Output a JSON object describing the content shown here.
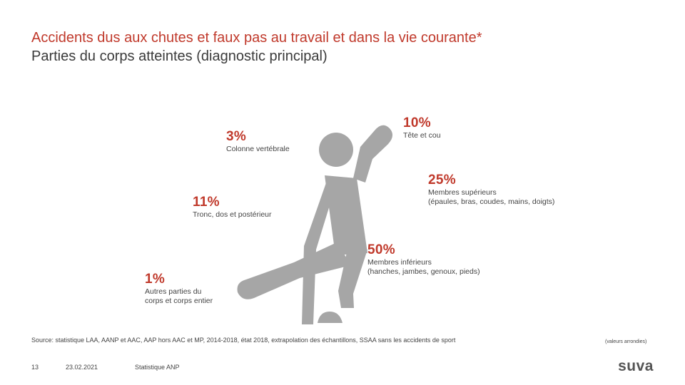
{
  "header": {
    "title": "Accidents dus aux chutes et faux pas au travail et dans la vie courante*",
    "subtitle": "Parties du corps atteintes (diagnostic principal)"
  },
  "parts": [
    {
      "id": "head",
      "percent": "10%",
      "label": "Tête et cou"
    },
    {
      "id": "spine",
      "percent": "3%",
      "label": "Colonne vertébrale"
    },
    {
      "id": "upper",
      "percent": "25%",
      "label": "Membres supérieurs\n(épaules, bras, coudes, mains, doigts)"
    },
    {
      "id": "trunk",
      "percent": "11%",
      "label": "Tronc, dos et postérieur"
    },
    {
      "id": "lower",
      "percent": "50%",
      "label": "Membres inférieurs\n(hanches, jambes, genoux, pieds)"
    },
    {
      "id": "other",
      "percent": "1%",
      "label": "Autres parties du\ncorps et corps entier"
    }
  ],
  "footer": {
    "source": "Source: statistique LAA, AANP et AAC, AAP hors AAC et MP, 2014-2018, état 2018, extrapolation des échantillons, SSAA sans les accidents de sport",
    "note": "(valeurs arrondies)",
    "page": "13",
    "date": "23.02.2021",
    "dept": "Statistique ANP",
    "logo": "suva"
  },
  "colors": {
    "accent": "#c0392b",
    "figure": "#a6a6a6"
  },
  "icons": [
    "falling-person-icon"
  ]
}
